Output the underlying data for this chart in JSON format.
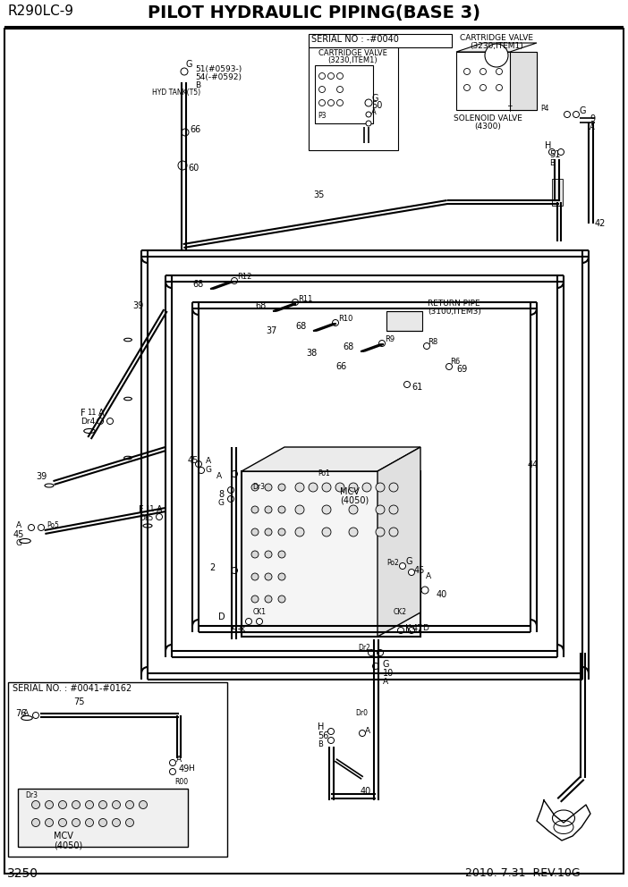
{
  "title": "PILOT HYDRAULIC PIPING(BASE 3)",
  "model": "R290LC-9",
  "page": "3250",
  "date": "2010. 7.31  REV.10G",
  "bg_color": "#ffffff",
  "line_color": "#000000",
  "fig_width": 7.02,
  "fig_height": 9.92,
  "dpi": 100
}
